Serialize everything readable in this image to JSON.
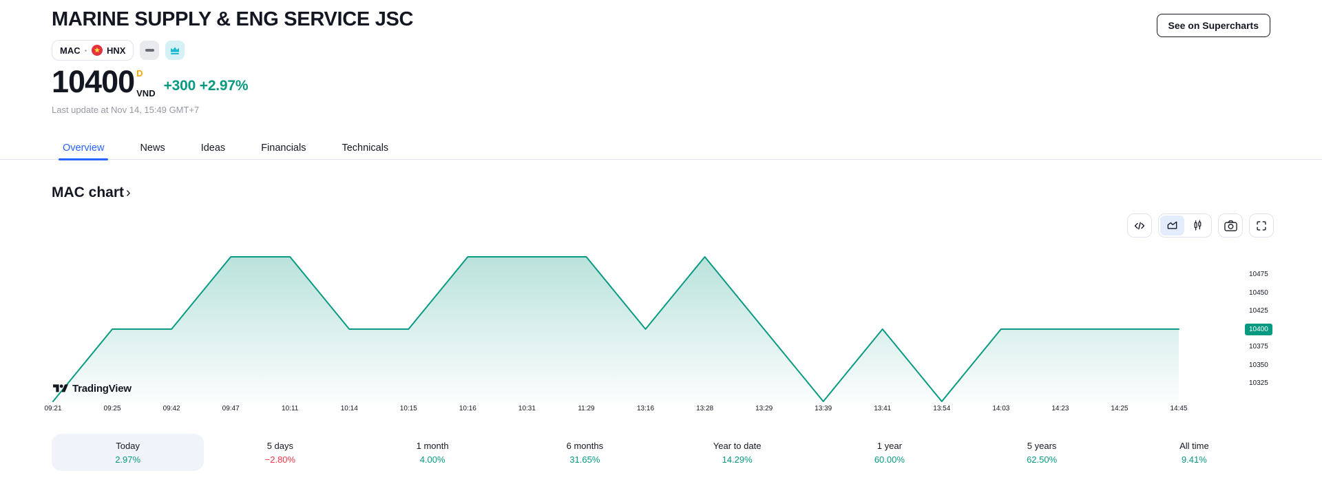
{
  "header": {
    "title": "MARINE SUPPLY & ENG SERVICE JSC",
    "symbol": "MAC",
    "separator": "·",
    "exchange": "HNX",
    "supercharts_button": "See on Supercharts",
    "price": "10400",
    "session_letter": "D",
    "currency": "VND",
    "change_abs": "+300",
    "change_pct": "+2.97%",
    "last_update": "Last update at Nov 14, 15:49 GMT+7"
  },
  "tabs": [
    {
      "label": "Overview",
      "active": true
    },
    {
      "label": "News",
      "active": false
    },
    {
      "label": "Ideas",
      "active": false
    },
    {
      "label": "Financials",
      "active": false
    },
    {
      "label": "Technicals",
      "active": false
    }
  ],
  "section": {
    "heading": "MAC chart",
    "chevron": "›"
  },
  "chart_data": {
    "type": "area",
    "title": "MAC chart",
    "x": [
      "09:21",
      "09:25",
      "09:42",
      "09:47",
      "10:11",
      "10:14",
      "10:15",
      "10:16",
      "10:31",
      "11:29",
      "13:16",
      "13:28",
      "13:29",
      "13:39",
      "13:41",
      "13:54",
      "14:03",
      "14:23",
      "14:25",
      "14:45"
    ],
    "values": [
      10300,
      10400,
      10400,
      10500,
      10500,
      10400,
      10400,
      10500,
      10500,
      10500,
      10400,
      10500,
      10400,
      10300,
      10400,
      10300,
      10400,
      10400,
      10400,
      10400
    ],
    "ylim": [
      10300,
      10500
    ],
    "y_ticks": [
      10475,
      10450,
      10425,
      10400,
      10375,
      10350,
      10325
    ],
    "current_price": "10400",
    "line_color": "#089981",
    "grid": false,
    "legend": false,
    "watermark": "TradingView"
  },
  "periods": [
    {
      "label": "Today",
      "value": "2.97%",
      "direction": "up",
      "active": true
    },
    {
      "label": "5 days",
      "value": "−2.80%",
      "direction": "down",
      "active": false
    },
    {
      "label": "1 month",
      "value": "4.00%",
      "direction": "up",
      "active": false
    },
    {
      "label": "6 months",
      "value": "31.65%",
      "direction": "up",
      "active": false
    },
    {
      "label": "Year to date",
      "value": "14.29%",
      "direction": "up",
      "active": false
    },
    {
      "label": "1 year",
      "value": "60.00%",
      "direction": "up",
      "active": false
    },
    {
      "label": "5 years",
      "value": "62.50%",
      "direction": "up",
      "active": false
    },
    {
      "label": "All time",
      "value": "9.41%",
      "direction": "up",
      "active": false
    }
  ],
  "colors": {
    "up_green": "#089981",
    "down_red": "#f23645",
    "accent_blue": "#2962ff",
    "session_orange": "#f7a600",
    "text_dark": "#131722",
    "text_gray": "#9598a1",
    "border_gray": "#e0e3eb",
    "active_card_bg": "#f0f3fa",
    "axis_badge_bg": "#089981",
    "flag_red": "#e3313d",
    "flag_yellow": "#ffd53d",
    "crown_teal": "#1cb9d2"
  }
}
